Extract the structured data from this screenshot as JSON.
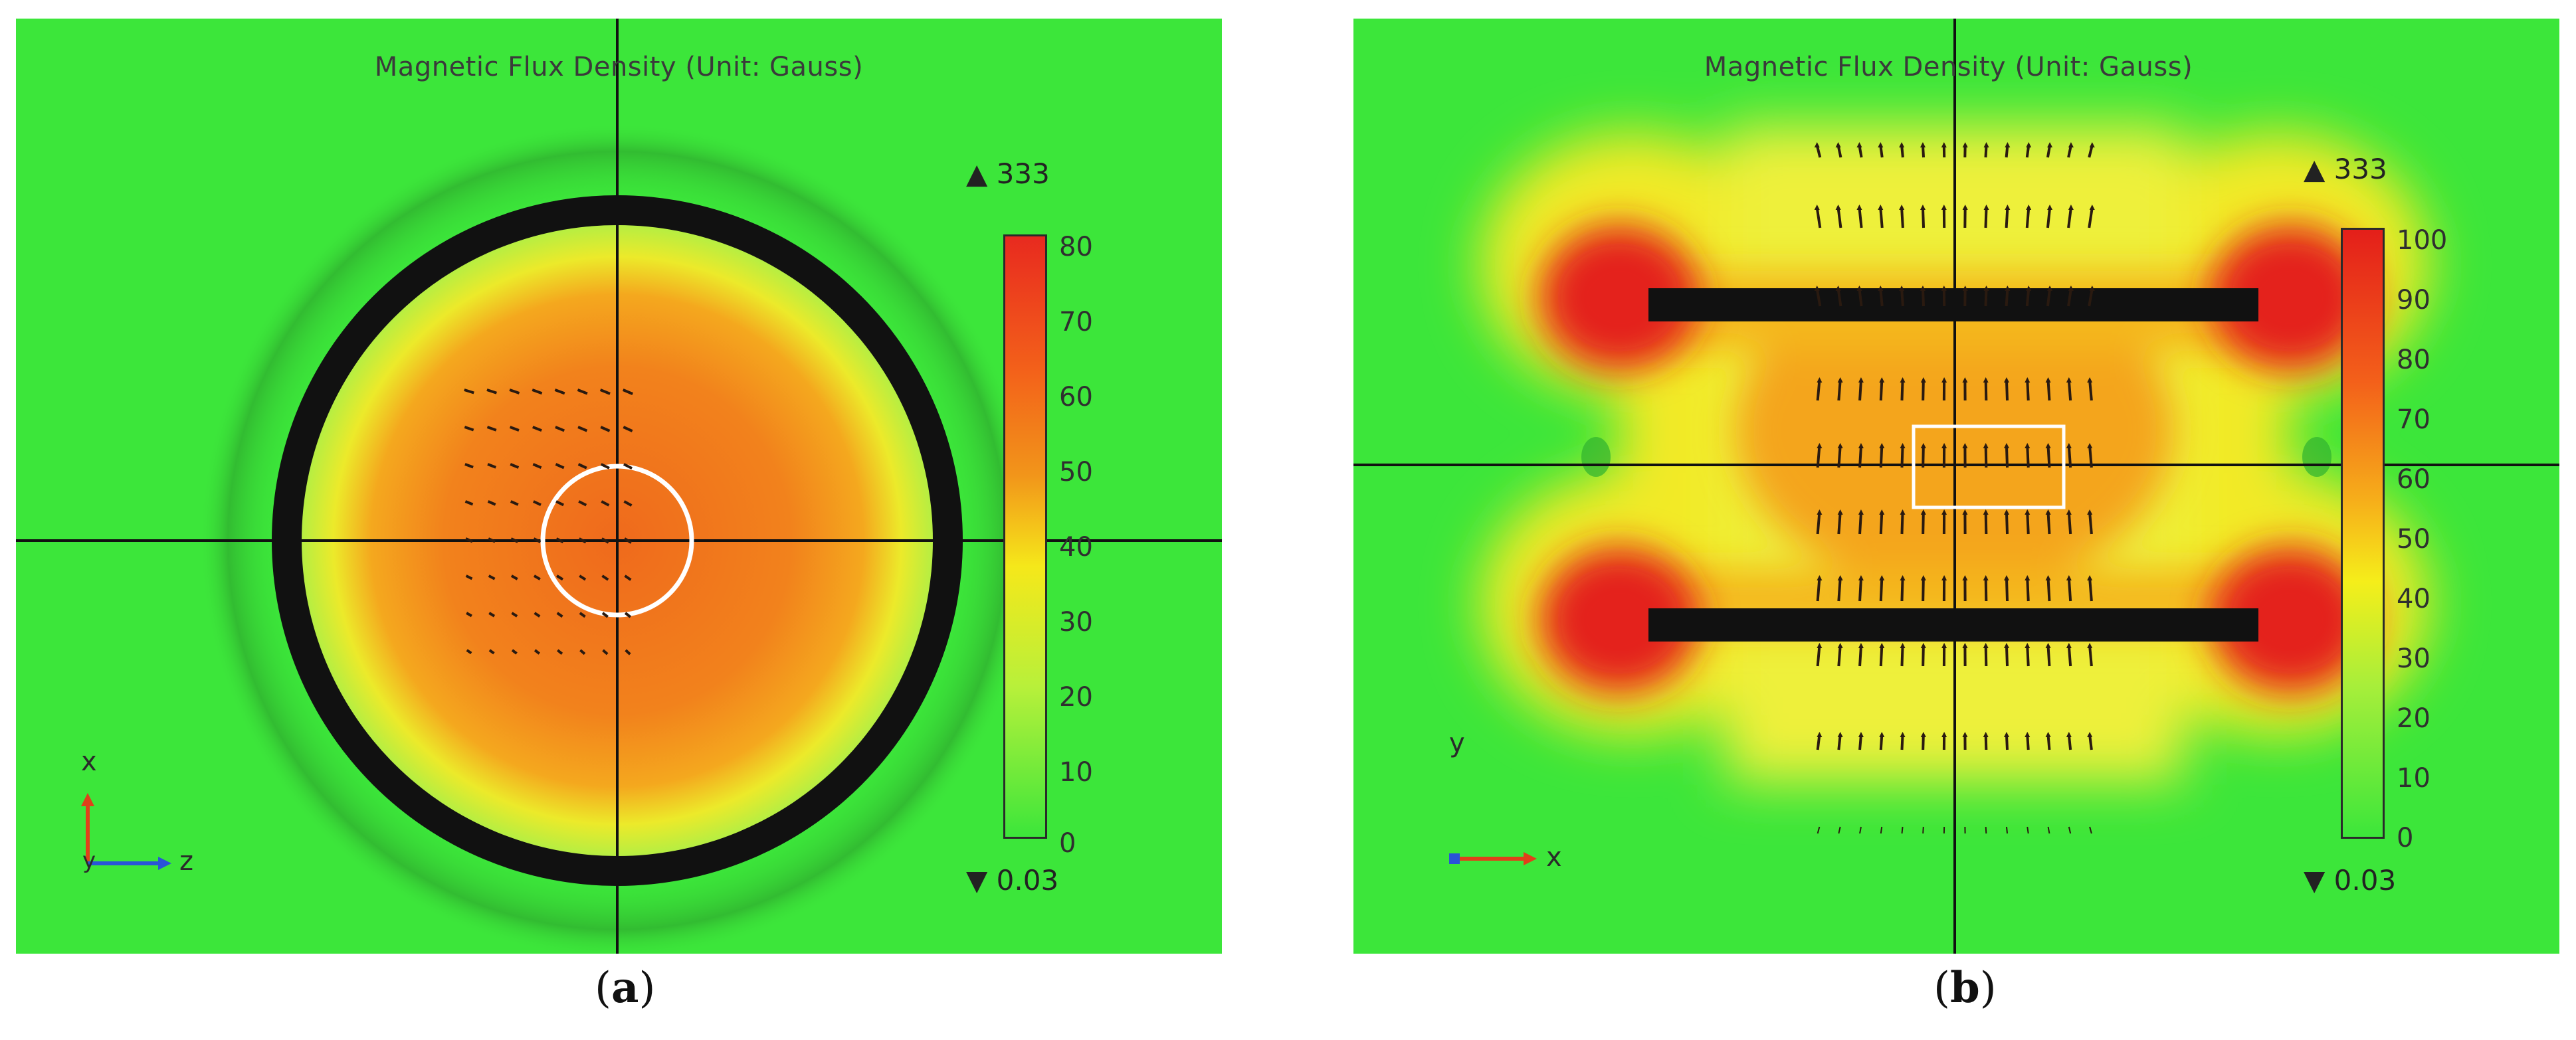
{
  "figure": {
    "panels": [
      {
        "title": "Magnetic Flux Density (Unit: Gauss)",
        "colorbar_ticks": [
          "80",
          "70",
          "60",
          "50",
          "40",
          "30",
          "20",
          "10",
          "0"
        ],
        "max_marker": "▲ 333",
        "min_marker": "▼ 0.03",
        "axes": {
          "vertical": "x",
          "origin": "y",
          "horizontal": "z"
        },
        "caption_open": "(",
        "caption_letter": "a",
        "caption_close": ")"
      },
      {
        "title": "Magnetic Flux Density (Unit: Gauss)",
        "colorbar_ticks": [
          "100",
          "90",
          "80",
          "70",
          "60",
          "50",
          "40",
          "30",
          "20",
          "10",
          "0"
        ],
        "max_marker": "▲ 333",
        "min_marker": "▼ 0.03",
        "axes": {
          "vertical": "y",
          "horizontal": "x"
        },
        "caption_open": "(",
        "caption_letter": "b",
        "caption_close": ")"
      }
    ],
    "colors": {
      "background_field": "#3ce63a",
      "high_field": "#e82a1f",
      "mid_field": "#f29a1c",
      "coil": "#111111",
      "axis_x_arrow": "#e0401a",
      "axis_z_arrow": "#2a54d8"
    }
  }
}
